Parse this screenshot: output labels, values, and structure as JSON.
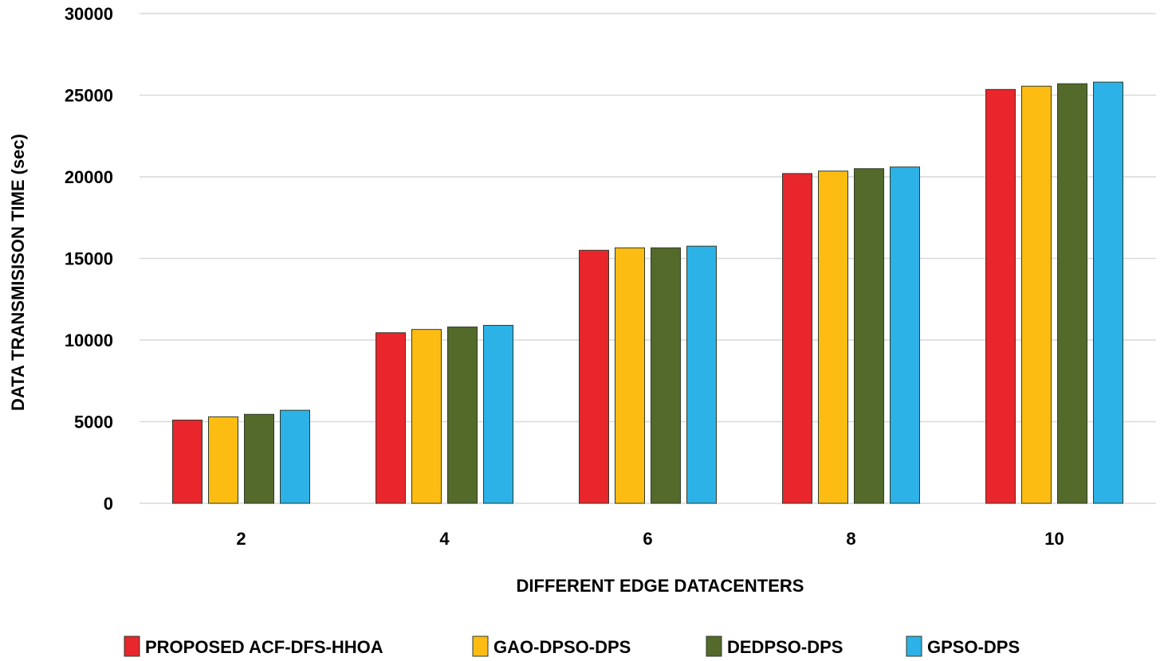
{
  "chart_data": {
    "type": "bar",
    "title": "",
    "xlabel": "DIFFERENT EDGE DATACENTERS",
    "ylabel": "DATA TRANSMISISON TIME  (sec)",
    "ylim": [
      0,
      30000
    ],
    "yticks": [
      "0",
      "5000",
      "10000",
      "15000",
      "20000",
      "25000",
      "30000"
    ],
    "categories": [
      "2",
      "4",
      "6",
      "8",
      "10"
    ],
    "grid": true,
    "legend_position": "bottom",
    "series": [
      {
        "name": "PROPOSED ACF-DFS-HHOA",
        "color": "#e8262c",
        "values": [
          5100,
          10450,
          15500,
          20200,
          25350
        ]
      },
      {
        "name": "GAO-DPSO-DPS",
        "color": "#fcbc12",
        "values": [
          5300,
          10650,
          15650,
          20350,
          25550
        ]
      },
      {
        "name": "DEDPSO-DPS",
        "color": "#536a2b",
        "values": [
          5450,
          10800,
          15650,
          20500,
          25700
        ]
      },
      {
        "name": "GPSO-DPS",
        "color": "#2cb2e6",
        "values": [
          5700,
          10900,
          15750,
          20600,
          25800
        ]
      }
    ]
  }
}
